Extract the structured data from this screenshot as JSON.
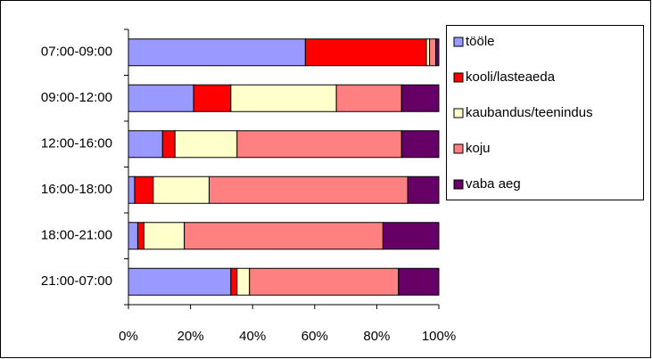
{
  "chart_data": {
    "type": "stacked_hbar",
    "categories": [
      "07:00-09:00",
      "09:00-12:00",
      "12:00-16:00",
      "16:00-18:00",
      "18:00-21:00",
      "21:00-07:00"
    ],
    "series": [
      {
        "name": "tööle",
        "color": "#9999ff",
        "values": [
          57,
          21,
          11,
          2,
          3,
          33
        ]
      },
      {
        "name": "kooli/lasteaeda",
        "color": "#ff0000",
        "values": [
          39,
          12,
          4,
          6,
          2,
          2
        ]
      },
      {
        "name": "kaubandus/teenindus",
        "color": "#ffffcc",
        "values": [
          1,
          34,
          20,
          18,
          13,
          4
        ]
      },
      {
        "name": "koju",
        "color": "#ff8080",
        "values": [
          2,
          21,
          53,
          64,
          64,
          48
        ]
      },
      {
        "name": "vaba aeg",
        "color": "#660066",
        "values": [
          1,
          12,
          12,
          10,
          18,
          13
        ]
      }
    ],
    "xlim": [
      0,
      100
    ],
    "xticks": [
      {
        "value": 0,
        "label": "0%"
      },
      {
        "value": 20,
        "label": "20%"
      },
      {
        "value": 40,
        "label": "40%"
      },
      {
        "value": 60,
        "label": "60%"
      },
      {
        "value": 80,
        "label": "80%"
      },
      {
        "value": 100,
        "label": "100%"
      }
    ],
    "legend": "right"
  }
}
